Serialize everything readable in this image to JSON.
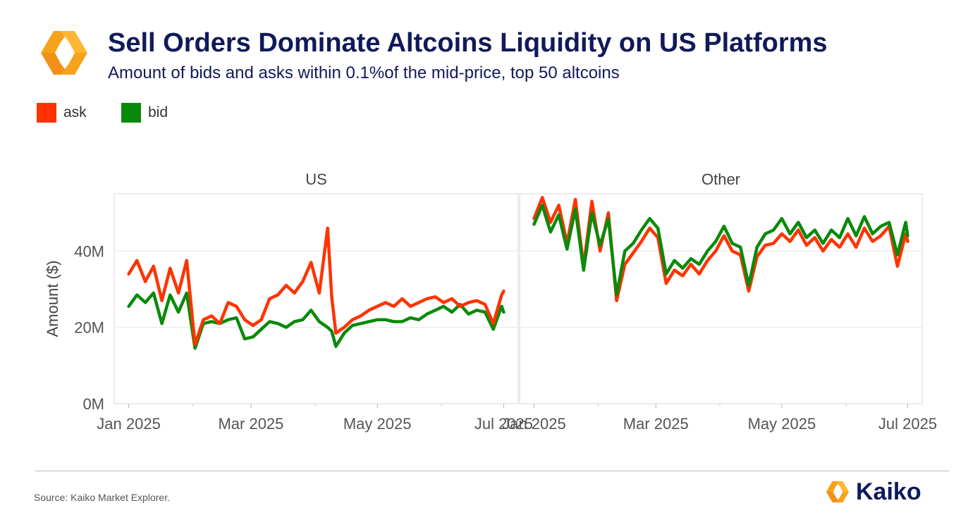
{
  "header": {
    "title": "Sell Orders Dominate Altcoins Liquidity on US Platforms",
    "subtitle": "Amount of bids and asks within 0.1%of the mid-price, top 50 altcoins"
  },
  "legend": [
    {
      "label": "ask",
      "color": "#ff3300"
    },
    {
      "label": "bid",
      "color": "#0a8a0a"
    }
  ],
  "footer": {
    "source": "Source: Kaiko Market Explorer.",
    "brand": "Kaiko"
  },
  "colors": {
    "ask": "#ff3300",
    "bid": "#0a8a0a",
    "brand_orange": "#f7a21b",
    "title": "#101a5a"
  },
  "chart_data": {
    "type": "line",
    "ylabel": "Amount ($)",
    "ylim": [
      0,
      55000000
    ],
    "y_ticks": [
      {
        "value": 0,
        "label": "0M"
      },
      {
        "value": 20000000,
        "label": "20M"
      },
      {
        "value": 40000000,
        "label": "40M"
      }
    ],
    "x_ticks": [
      {
        "date": "2025-01-01",
        "label": "Jan 2025"
      },
      {
        "date": "2025-03-01",
        "label": "Mar 2025"
      },
      {
        "date": "2025-05-01",
        "label": "May 2025"
      },
      {
        "date": "2025-07-01",
        "label": "Jul 2025"
      }
    ],
    "xlim": [
      "2024-12-25",
      "2025-07-08"
    ],
    "grid": true,
    "legend_position": "top-left",
    "panels": [
      {
        "name": "US",
        "series": [
          {
            "name": "ask",
            "color": "#ff3300",
            "x": [
              "2025-01-01",
              "2025-01-05",
              "2025-01-09",
              "2025-01-13",
              "2025-01-17",
              "2025-01-21",
              "2025-01-25",
              "2025-01-29",
              "2025-02-02",
              "2025-02-06",
              "2025-02-10",
              "2025-02-14",
              "2025-02-18",
              "2025-02-22",
              "2025-02-26",
              "2025-03-02",
              "2025-03-06",
              "2025-03-10",
              "2025-03-14",
              "2025-03-18",
              "2025-03-22",
              "2025-03-26",
              "2025-03-30",
              "2025-04-03",
              "2025-04-07",
              "2025-04-09",
              "2025-04-11",
              "2025-04-15",
              "2025-04-19",
              "2025-04-23",
              "2025-04-27",
              "2025-05-01",
              "2025-05-05",
              "2025-05-09",
              "2025-05-13",
              "2025-05-17",
              "2025-05-21",
              "2025-05-25",
              "2025-05-29",
              "2025-06-02",
              "2025-06-06",
              "2025-06-10",
              "2025-06-14",
              "2025-06-18",
              "2025-06-22",
              "2025-06-26",
              "2025-06-30",
              "2025-07-01"
            ],
            "y": [
              34000000,
              37500000,
              32000000,
              36000000,
              27000000,
              35500000,
              29000000,
              37500000,
              15500000,
              22000000,
              23000000,
              21000000,
              26500000,
              25500000,
              22000000,
              20500000,
              22000000,
              27500000,
              28500000,
              31000000,
              29000000,
              32000000,
              37000000,
              29000000,
              46000000,
              28000000,
              18500000,
              20000000,
              22000000,
              23000000,
              24500000,
              25500000,
              26500000,
              25500000,
              27500000,
              25500000,
              26500000,
              27500000,
              28000000,
              26500000,
              27500000,
              25500000,
              26500000,
              27000000,
              26000000,
              21000000,
              28500000,
              29500000
            ]
          },
          {
            "name": "bid",
            "color": "#0a8a0a",
            "x": [
              "2025-01-01",
              "2025-01-05",
              "2025-01-09",
              "2025-01-13",
              "2025-01-17",
              "2025-01-21",
              "2025-01-25",
              "2025-01-29",
              "2025-02-02",
              "2025-02-06",
              "2025-02-10",
              "2025-02-14",
              "2025-02-18",
              "2025-02-22",
              "2025-02-26",
              "2025-03-02",
              "2025-03-06",
              "2025-03-10",
              "2025-03-14",
              "2025-03-18",
              "2025-03-22",
              "2025-03-26",
              "2025-03-30",
              "2025-04-03",
              "2025-04-07",
              "2025-04-09",
              "2025-04-11",
              "2025-04-15",
              "2025-04-19",
              "2025-04-23",
              "2025-04-27",
              "2025-05-01",
              "2025-05-05",
              "2025-05-09",
              "2025-05-13",
              "2025-05-17",
              "2025-05-21",
              "2025-05-25",
              "2025-05-29",
              "2025-06-02",
              "2025-06-06",
              "2025-06-10",
              "2025-06-14",
              "2025-06-18",
              "2025-06-22",
              "2025-06-26",
              "2025-06-30",
              "2025-07-01"
            ],
            "y": [
              25500000,
              28500000,
              26500000,
              29000000,
              21000000,
              28500000,
              24000000,
              29000000,
              14500000,
              21000000,
              21500000,
              21000000,
              22000000,
              22500000,
              17000000,
              17500000,
              19500000,
              21500000,
              21000000,
              20000000,
              21500000,
              22000000,
              24500000,
              21500000,
              20000000,
              19000000,
              15000000,
              18500000,
              20500000,
              21000000,
              21500000,
              22000000,
              22000000,
              21500000,
              21500000,
              22500000,
              22000000,
              23500000,
              24500000,
              25500000,
              24000000,
              26000000,
              23500000,
              24500000,
              24000000,
              19500000,
              25500000,
              24000000
            ]
          }
        ]
      },
      {
        "name": "Other",
        "series": [
          {
            "name": "ask",
            "color": "#ff3300",
            "x": [
              "2025-01-01",
              "2025-01-05",
              "2025-01-09",
              "2025-01-13",
              "2025-01-17",
              "2025-01-21",
              "2025-01-25",
              "2025-01-29",
              "2025-02-02",
              "2025-02-06",
              "2025-02-10",
              "2025-02-14",
              "2025-02-18",
              "2025-02-22",
              "2025-02-26",
              "2025-03-02",
              "2025-03-06",
              "2025-03-10",
              "2025-03-14",
              "2025-03-18",
              "2025-03-22",
              "2025-03-26",
              "2025-03-30",
              "2025-04-03",
              "2025-04-07",
              "2025-04-11",
              "2025-04-15",
              "2025-04-19",
              "2025-04-23",
              "2025-04-27",
              "2025-05-01",
              "2025-05-05",
              "2025-05-09",
              "2025-05-13",
              "2025-05-17",
              "2025-05-21",
              "2025-05-25",
              "2025-05-29",
              "2025-06-02",
              "2025-06-06",
              "2025-06-10",
              "2025-06-14",
              "2025-06-18",
              "2025-06-22",
              "2025-06-26",
              "2025-06-30",
              "2025-07-01"
            ],
            "y": [
              48500000,
              54000000,
              47500000,
              52000000,
              42000000,
              53500000,
              36000000,
              53000000,
              40000000,
              50000000,
              27000000,
              36500000,
              39500000,
              42500000,
              46000000,
              43500000,
              31500000,
              35000000,
              33500000,
              36500000,
              34000000,
              37500000,
              40000000,
              44000000,
              40000000,
              39000000,
              29500000,
              38500000,
              41500000,
              42000000,
              44500000,
              42500000,
              45500000,
              41500000,
              43500000,
              40000000,
              43000000,
              41000000,
              44500000,
              41000000,
              46000000,
              42500000,
              44000000,
              46500000,
              36000000,
              44500000,
              42500000
            ]
          },
          {
            "name": "bid",
            "color": "#0a8a0a",
            "x": [
              "2025-01-01",
              "2025-01-05",
              "2025-01-09",
              "2025-01-13",
              "2025-01-17",
              "2025-01-21",
              "2025-01-25",
              "2025-01-29",
              "2025-02-02",
              "2025-02-06",
              "2025-02-10",
              "2025-02-14",
              "2025-02-18",
              "2025-02-22",
              "2025-02-26",
              "2025-03-02",
              "2025-03-06",
              "2025-03-10",
              "2025-03-14",
              "2025-03-18",
              "2025-03-22",
              "2025-03-26",
              "2025-03-30",
              "2025-04-03",
              "2025-04-07",
              "2025-04-11",
              "2025-04-15",
              "2025-04-19",
              "2025-04-23",
              "2025-04-27",
              "2025-05-01",
              "2025-05-05",
              "2025-05-09",
              "2025-05-13",
              "2025-05-17",
              "2025-05-21",
              "2025-05-25",
              "2025-05-29",
              "2025-06-02",
              "2025-06-06",
              "2025-06-10",
              "2025-06-14",
              "2025-06-18",
              "2025-06-22",
              "2025-06-26",
              "2025-06-30",
              "2025-07-01"
            ],
            "y": [
              47000000,
              52000000,
              45000000,
              49500000,
              40500000,
              51000000,
              35000000,
              50000000,
              41500000,
              48500000,
              28500000,
              40000000,
              42000000,
              45500000,
              48500000,
              46000000,
              34000000,
              37500000,
              35500000,
              38000000,
              36500000,
              40000000,
              42500000,
              46500000,
              42000000,
              41000000,
              31000000,
              41000000,
              44500000,
              45500000,
              48500000,
              44500000,
              47500000,
              43500000,
              45500000,
              42000000,
              45500000,
              43500000,
              48500000,
              44000000,
              49000000,
              44500000,
              46500000,
              47500000,
              39000000,
              47500000,
              44000000
            ]
          }
        ]
      }
    ]
  }
}
